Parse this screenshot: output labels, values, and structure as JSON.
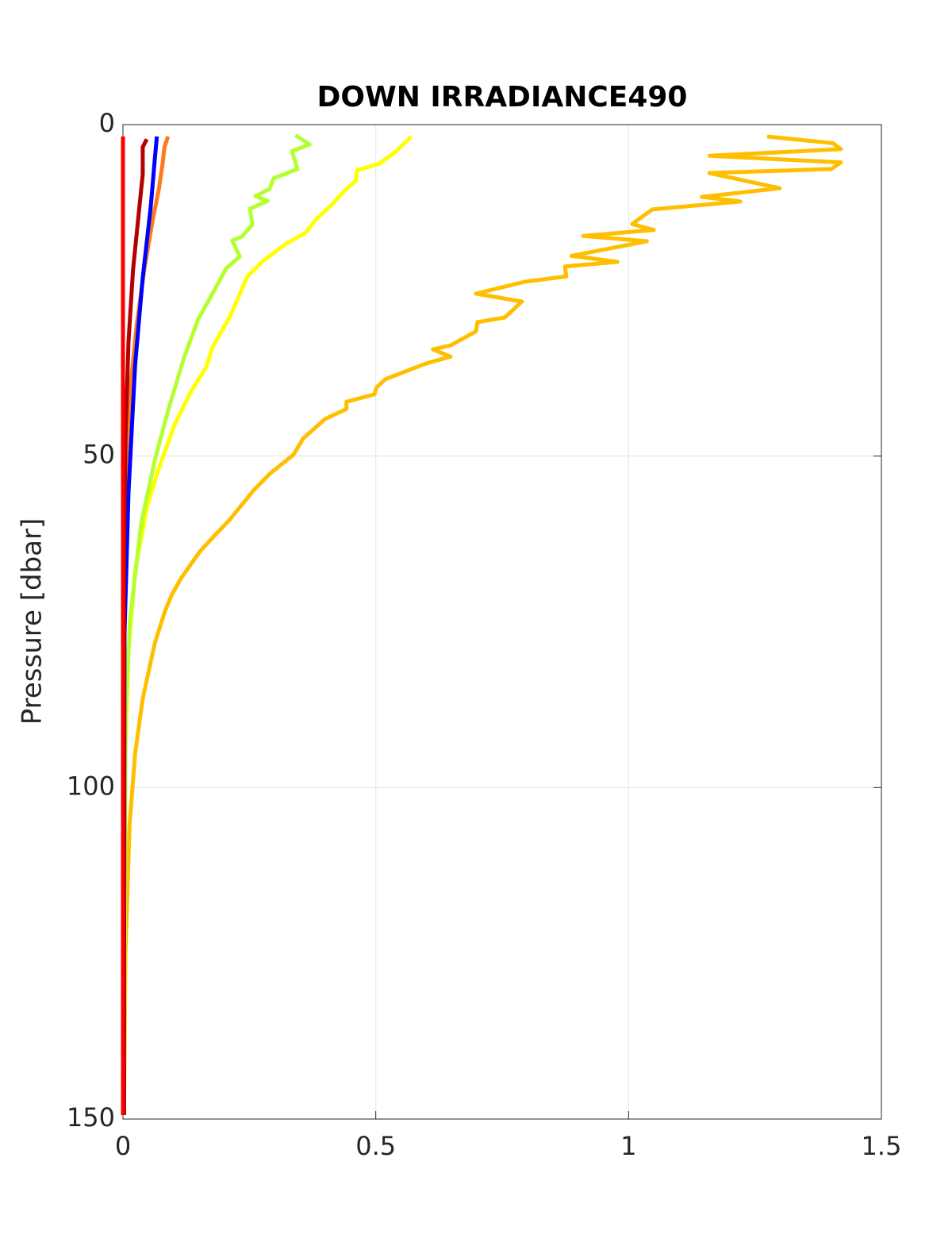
{
  "chart_data": {
    "type": "line",
    "title": "DOWN IRRADIANCE490",
    "y_label": "Pressure [dbar]",
    "xlim": [
      0,
      1.5
    ],
    "xticks": [
      0,
      0.5,
      1,
      1.5
    ],
    "ylim": [
      0,
      150
    ],
    "yticks": [
      0,
      50,
      100,
      150
    ],
    "y_reversed": true,
    "grid": true,
    "series": [
      {
        "color": "#ffbf00",
        "x": [
          1.274,
          1.404,
          1.42,
          1.16,
          1.42,
          1.401,
          1.16,
          1.299,
          1.145,
          1.221,
          1.047,
          1.007,
          1.05,
          0.91,
          1.036,
          0.887,
          0.978,
          0.874,
          0.877,
          0.795,
          0.698,
          0.789,
          0.755,
          0.701,
          0.698,
          0.648,
          0.613,
          0.648,
          0.601,
          0.57,
          0.519,
          0.502,
          0.497,
          0.442,
          0.442,
          0.4,
          0.357,
          0.337,
          0.29,
          0.259,
          0.21,
          0.181,
          0.152,
          0.115,
          0.096,
          0.083,
          0.063,
          0.039,
          0.024,
          0.013,
          0.005,
          0.002
        ],
        "y": [
          1.8,
          2.8,
          3.7,
          4.7,
          5.7,
          6.7,
          7.3,
          9.6,
          10.9,
          11.6,
          12.8,
          15.0,
          15.9,
          16.8,
          17.6,
          19.8,
          20.7,
          21.4,
          22.9,
          23.7,
          25.5,
          26.7,
          29.1,
          29.8,
          31.2,
          33.3,
          33.9,
          35.0,
          36.0,
          36.9,
          38.4,
          39.6,
          40.7,
          41.8,
          42.9,
          44.4,
          47.3,
          49.8,
          52.7,
          55.1,
          59.7,
          62.0,
          64.4,
          68.4,
          71.0,
          73.4,
          78.2,
          86.6,
          94.9,
          105.7,
          124.9,
          149.4
        ]
      },
      {
        "color": "#ffff00",
        "x": [
          0.57,
          0.541,
          0.507,
          0.463,
          0.46,
          0.439,
          0.413,
          0.384,
          0.361,
          0.322,
          0.275,
          0.246,
          0.212,
          0.177,
          0.165,
          0.133,
          0.102,
          0.071,
          0.047,
          0.024,
          0.011,
          0.005,
          0.002
        ],
        "y": [
          1.8,
          4.0,
          5.9,
          6.9,
          8.5,
          9.9,
          12.1,
          14.1,
          16.3,
          18.0,
          20.7,
          22.9,
          28.9,
          33.6,
          36.5,
          40.5,
          45.3,
          51.8,
          57.8,
          67.4,
          79.4,
          94.9,
          149.4
        ]
      },
      {
        "color": "#b4ff32",
        "x": [
          0.341,
          0.369,
          0.334,
          0.345,
          0.298,
          0.29,
          0.262,
          0.286,
          0.251,
          0.256,
          0.235,
          0.216,
          0.231,
          0.204,
          0.177,
          0.149,
          0.121,
          0.089,
          0.063,
          0.036,
          0.014,
          0.005,
          0.002
        ],
        "y": [
          1.6,
          3.0,
          4.0,
          6.7,
          8.1,
          9.7,
          10.8,
          11.5,
          12.7,
          15.1,
          16.9,
          17.5,
          19.9,
          21.7,
          25.5,
          29.3,
          35.1,
          43.2,
          50.6,
          60.2,
          74.6,
          89.0,
          149.4
        ]
      },
      {
        "color": "#ff7a1a",
        "x": [
          0.089,
          0.082,
          0.078,
          0.071,
          0.058,
          0.042,
          0.027,
          0.016,
          0.008,
          0.003,
          0.002
        ],
        "y": [
          1.8,
          3.4,
          6.1,
          9.7,
          14.7,
          21.9,
          30.3,
          38.7,
          48.2,
          65.0,
          149.4
        ]
      },
      {
        "color": "#0000ff",
        "x": [
          0.067,
          0.063,
          0.055,
          0.039,
          0.024,
          0.011,
          0.003,
          0.002
        ],
        "y": [
          1.8,
          5.1,
          12.3,
          23.1,
          36.3,
          55.4,
          77.0,
          149.4
        ]
      },
      {
        "color": "#b30000",
        "x": [
          0.047,
          0.039,
          0.039,
          0.031,
          0.02,
          0.011,
          0.005,
          0.002,
          0.002
        ],
        "y": [
          2.2,
          3.4,
          7.5,
          13.5,
          21.9,
          32.7,
          47.0,
          65.0,
          149.4
        ]
      },
      {
        "color": "#ff0000",
        "x": [
          0.0,
          0.0
        ],
        "y": [
          1.8,
          149.4
        ]
      }
    ]
  }
}
